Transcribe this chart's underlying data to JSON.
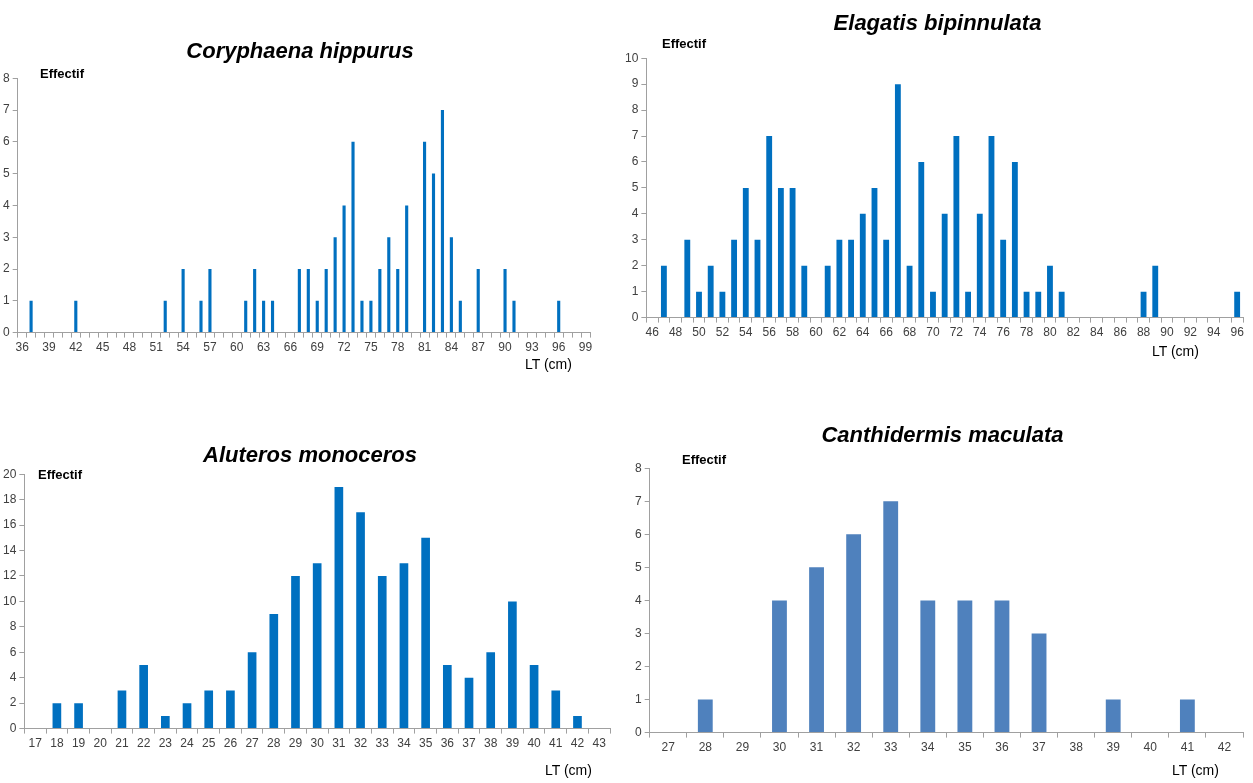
{
  "chart_data": [
    {
      "type": "bar",
      "title": "Coryphaena hippurus",
      "ylabel": "Effectif",
      "xlabel": "LT (cm)",
      "color": "#0070c0",
      "ylim": [
        0,
        8
      ],
      "yticks": [
        0,
        1,
        2,
        3,
        4,
        5,
        6,
        7,
        8
      ],
      "grid": false,
      "legend": false,
      "categories": [
        "36",
        null,
        null,
        "39",
        null,
        null,
        "42",
        null,
        null,
        "45",
        null,
        null,
        "48",
        null,
        null,
        "51",
        null,
        null,
        "54",
        null,
        null,
        "57",
        null,
        null,
        "60",
        null,
        null,
        "63",
        null,
        null,
        "66",
        null,
        null,
        "69",
        null,
        null,
        "72",
        null,
        null,
        "75",
        null,
        null,
        "78",
        null,
        null,
        "81",
        null,
        null,
        "84",
        null,
        null,
        "87",
        null,
        null,
        "90",
        null,
        null,
        "93",
        null,
        null,
        "96",
        null,
        null,
        "99"
      ],
      "values": [
        0,
        1,
        0,
        0,
        0,
        0,
        1,
        0,
        0,
        0,
        0,
        0,
        0,
        0,
        0,
        0,
        1,
        0,
        2,
        0,
        1,
        2,
        0,
        0,
        0,
        1,
        2,
        1,
        1,
        0,
        0,
        2,
        2,
        1,
        2,
        3,
        4,
        6,
        1,
        1,
        2,
        3,
        2,
        4,
        0,
        6,
        5,
        7,
        3,
        1,
        0,
        2,
        0,
        0,
        2,
        1,
        0,
        0,
        0,
        0,
        1,
        0,
        0,
        0
      ]
    },
    {
      "type": "bar",
      "title": "Elagatis bipinnulata",
      "ylabel": "Effectif",
      "xlabel": "LT (cm)",
      "color": "#0070c0",
      "ylim": [
        0,
        10
      ],
      "yticks": [
        0,
        1,
        2,
        3,
        4,
        5,
        6,
        7,
        8,
        9,
        10
      ],
      "grid": false,
      "legend": false,
      "categories": [
        "46",
        null,
        "48",
        null,
        "50",
        null,
        "52",
        null,
        "54",
        null,
        "56",
        null,
        "58",
        null,
        "60",
        null,
        "62",
        null,
        "64",
        null,
        "66",
        null,
        "68",
        null,
        "70",
        null,
        "72",
        null,
        "74",
        null,
        "76",
        null,
        "78",
        null,
        "80",
        null,
        "82",
        null,
        "84",
        null,
        "86",
        null,
        "88",
        null,
        "90",
        null,
        "92",
        null,
        "94",
        null,
        "96"
      ],
      "values": [
        0,
        2,
        0,
        3,
        1,
        2,
        1,
        3,
        5,
        3,
        7,
        5,
        5,
        2,
        0,
        2,
        3,
        3,
        4,
        5,
        3,
        9,
        2,
        6,
        1,
        4,
        7,
        1,
        4,
        7,
        3,
        6,
        1,
        1,
        2,
        1,
        0,
        0,
        0,
        0,
        0,
        0,
        1,
        2,
        0,
        0,
        0,
        0,
        0,
        0,
        1
      ]
    },
    {
      "type": "bar",
      "title": "Aluteros monoceros",
      "ylabel": "Effectif",
      "xlabel": "LT (cm)",
      "color": "#0070c0",
      "ylim": [
        0,
        20
      ],
      "yticks": [
        0,
        2,
        4,
        6,
        8,
        10,
        12,
        14,
        16,
        18,
        20
      ],
      "grid": false,
      "legend": false,
      "categories": [
        "17",
        "18",
        "19",
        "20",
        "21",
        "22",
        "23",
        "24",
        "25",
        "26",
        "27",
        "28",
        "29",
        "30",
        "31",
        "32",
        "33",
        "34",
        "35",
        "36",
        "37",
        "38",
        "39",
        "40",
        "41",
        "42",
        "43"
      ],
      "values": [
        0,
        2,
        2,
        0,
        3,
        5,
        1,
        2,
        3,
        3,
        6,
        9,
        12,
        13,
        19,
        17,
        12,
        13,
        15,
        5,
        4,
        6,
        10,
        5,
        3,
        1,
        0
      ]
    },
    {
      "type": "bar",
      "title": "Canthidermis maculata",
      "ylabel": "Effectif",
      "xlabel": "LT (cm)",
      "color": "#4f81bd",
      "ylim": [
        0,
        8
      ],
      "yticks": [
        0,
        1,
        2,
        3,
        4,
        5,
        6,
        7,
        8
      ],
      "grid": false,
      "legend": false,
      "categories": [
        "27",
        "28",
        "29",
        "30",
        "31",
        "32",
        "33",
        "34",
        "35",
        "36",
        "37",
        "38",
        "39",
        "40",
        "41",
        "42"
      ],
      "values": [
        0,
        1,
        0,
        4,
        5,
        6,
        7,
        4,
        4,
        4,
        3,
        0,
        1,
        0,
        1,
        0
      ]
    }
  ]
}
